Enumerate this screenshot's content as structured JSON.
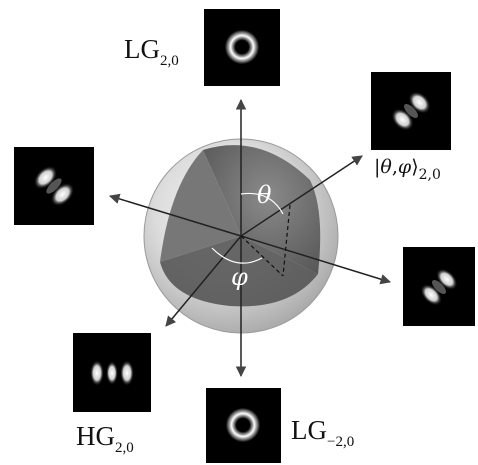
{
  "labels": {
    "lg_top": {
      "main": "LG",
      "sub": "2,0"
    },
    "lg_bottom": {
      "main": "LG",
      "sub": "−2,0"
    },
    "hg": {
      "main": "HG",
      "sub": "2,0"
    },
    "ket": {
      "open": "|",
      "theta": "θ",
      "comma": ",",
      "phi": "φ",
      "close": "⟩",
      "sub": "2,0"
    }
  },
  "angles": {
    "theta": "θ",
    "phi": "φ"
  },
  "mode_images": [
    {
      "name": "lg-top-mode",
      "kind": "LG ring"
    },
    {
      "name": "ket-mode",
      "kind": "two-lobe diagonal"
    },
    {
      "name": "left-mode",
      "kind": "two-lobe diagonal"
    },
    {
      "name": "right-mode",
      "kind": "two-lobe diagonal"
    },
    {
      "name": "hg-mode",
      "kind": "three-lobe horizontal"
    },
    {
      "name": "lg-bottom-mode",
      "kind": "LG ring"
    }
  ],
  "colors": {
    "background": "#ffffff",
    "panel": "#000000",
    "sphere_light": "#ededed",
    "sphere_dark": "#6b6b6b"
  }
}
